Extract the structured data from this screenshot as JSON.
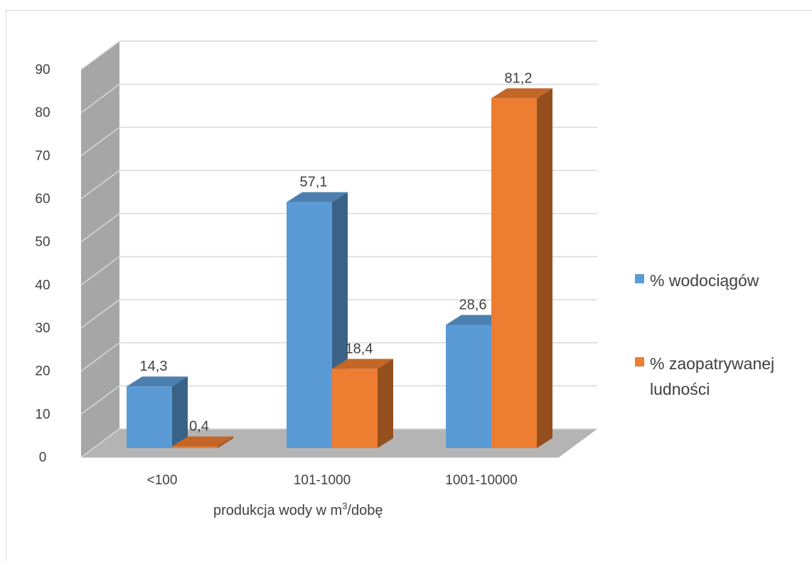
{
  "chart_data": {
    "type": "bar",
    "style": "3d-clustered-column",
    "title": "",
    "categories": [
      "<100",
      "101-1000",
      "1001-10000"
    ],
    "series": [
      {
        "name": "% wodociągów",
        "values": [
          14.3,
          57.1,
          28.6
        ],
        "labels": [
          "14,3",
          "57,1",
          "28,6"
        ],
        "color": "#5b9bd5"
      },
      {
        "name": "% zaopatrywanej ludności",
        "values": [
          0.4,
          18.4,
          81.2
        ],
        "labels": [
          "0,4",
          "18,4",
          "81,2"
        ],
        "color": "#ed7d31"
      }
    ],
    "xlabel": {
      "main": "produkcja wody w m",
      "sup": "3",
      "tail": "/dobę"
    },
    "ylabel": "",
    "ylim": [
      0,
      90
    ],
    "yticks": [
      0,
      10,
      20,
      30,
      40,
      50,
      60,
      70,
      80,
      90
    ],
    "grid": true,
    "legend": {
      "position": "right",
      "entries": [
        {
          "lines": [
            "% wodociągów"
          ]
        },
        {
          "lines": [
            "% zaopatrywanej",
            "ludności"
          ]
        }
      ]
    }
  }
}
